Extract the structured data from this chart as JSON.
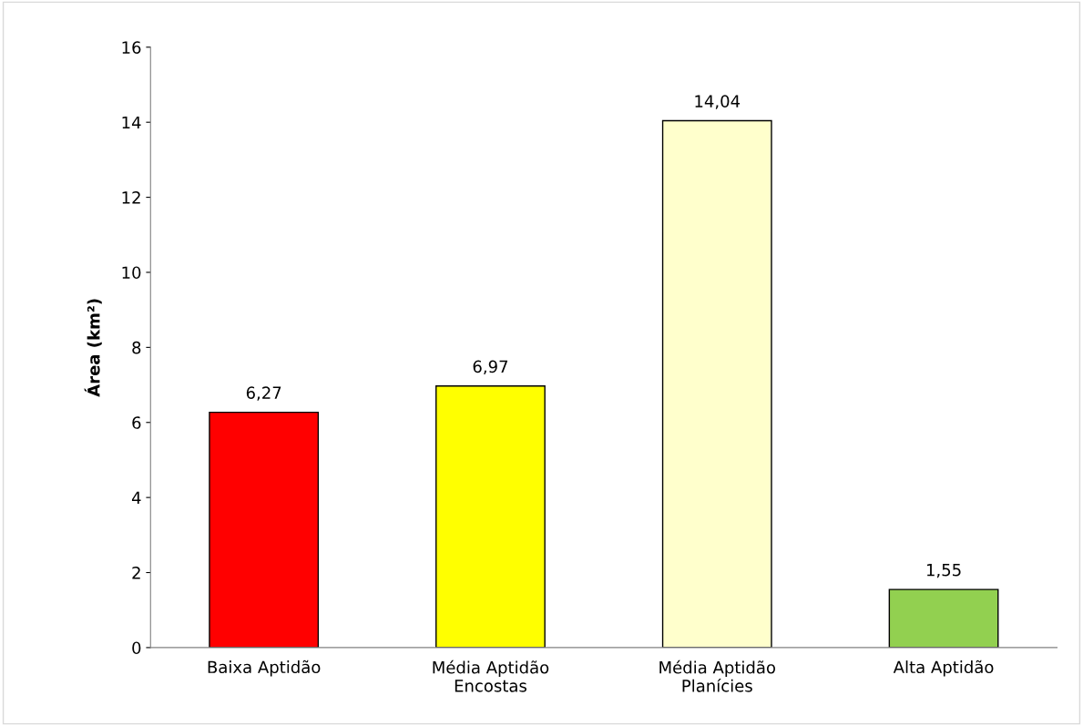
{
  "chart_data": {
    "type": "bar",
    "ylabel": "Área (km²)",
    "categories": [
      "Baixa Aptidão",
      "Média Aptidão\nEncostas",
      "Média Aptidão\nPlanícies",
      "Alta Aptidão"
    ],
    "values": [
      6.27,
      6.97,
      14.04,
      1.55
    ],
    "colors": [
      "#ff0000",
      "#ffff00",
      "#ffffcc",
      "#92d050"
    ],
    "value_labels": [
      "6,27",
      "6,97",
      "14,04",
      "1,55"
    ],
    "ylim": [
      0,
      16
    ],
    "yticks": [
      0,
      2,
      4,
      6,
      8,
      10,
      12,
      14,
      16
    ],
    "grid": false,
    "legend": false
  }
}
